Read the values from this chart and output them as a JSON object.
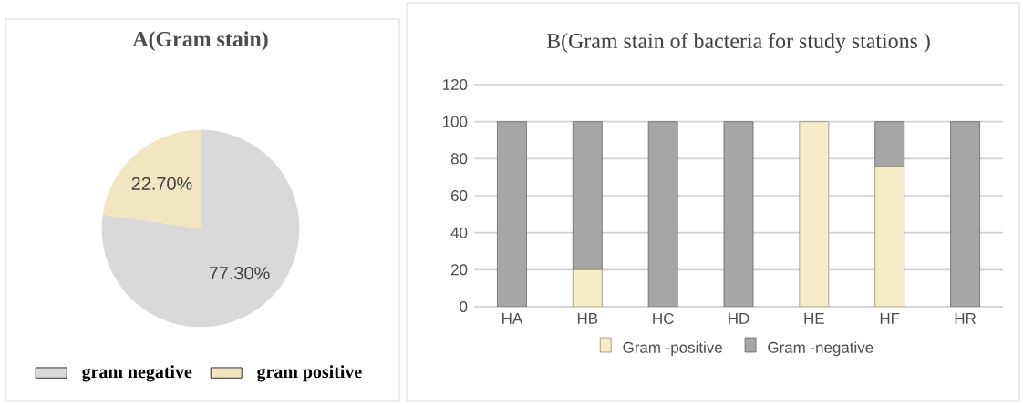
{
  "chart_data": [
    {
      "type": "pie",
      "title": "A(Gram stain)",
      "categories": [
        "gram negative",
        "gram positive"
      ],
      "values": [
        77.3,
        22.7
      ],
      "colors": [
        "#d9d9d9",
        "#f2e6c2"
      ],
      "value_labels": [
        "77.30%",
        "22.70%"
      ],
      "legend": "bottom"
    },
    {
      "type": "bar",
      "title": "B(Gram stain of bacteria for study stations )",
      "categories": [
        "HA",
        "HB",
        "HC",
        "HD",
        "HE",
        "HF",
        "HR"
      ],
      "stacked": true,
      "series": [
        {
          "name": "Gram -positive",
          "color": "#f5edc8",
          "values": [
            0,
            20,
            0,
            0,
            100,
            76,
            0
          ]
        },
        {
          "name": "Gram -negative",
          "color": "#a6a6a6",
          "values": [
            100,
            80,
            100,
            100,
            0,
            24,
            100
          ]
        }
      ],
      "ylim": [
        0,
        120
      ],
      "yticks": [
        0,
        20,
        40,
        60,
        80,
        100,
        120
      ],
      "grid": "y",
      "legend": "bottom"
    }
  ]
}
